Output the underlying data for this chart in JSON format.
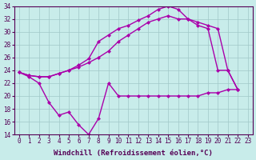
{
  "xlabel": "Windchill (Refroidissement éolien,°C)",
  "bg_color": "#c8ecea",
  "grid_color": "#a0c8c8",
  "line_color": "#aa00aa",
  "xlim": [
    -0.5,
    23.5
  ],
  "ylim": [
    14,
    34
  ],
  "yticks": [
    14,
    16,
    18,
    20,
    22,
    24,
    26,
    28,
    30,
    32,
    34
  ],
  "xticks": [
    0,
    1,
    2,
    3,
    4,
    5,
    6,
    7,
    8,
    9,
    10,
    11,
    12,
    13,
    14,
    15,
    16,
    17,
    18,
    19,
    20,
    21,
    22,
    23
  ],
  "line1_x": [
    0,
    1,
    2,
    3,
    4,
    5,
    6,
    7,
    8,
    9,
    10,
    11,
    12,
    13,
    14,
    15,
    16,
    17,
    18,
    19,
    20,
    21,
    22
  ],
  "line1_y": [
    23.7,
    23.0,
    22.0,
    19.0,
    17.0,
    17.5,
    15.5,
    14.0,
    16.5,
    22.0,
    20.0,
    20.0,
    20.0,
    20.0,
    20.0,
    20.0,
    20.0,
    20.0,
    20.0,
    20.5,
    20.5,
    21.0,
    21.0
  ],
  "line2_x": [
    0,
    1,
    2,
    3,
    4,
    5,
    6,
    7,
    8,
    9,
    10,
    11,
    12,
    13,
    14,
    15,
    16,
    17,
    18,
    19,
    20,
    21,
    22
  ],
  "line2_y": [
    23.7,
    23.2,
    23.0,
    23.0,
    23.5,
    24.0,
    24.8,
    25.8,
    28.5,
    29.5,
    30.5,
    31.0,
    31.8,
    32.5,
    33.5,
    34.0,
    33.5,
    32.0,
    31.0,
    30.5,
    24.0,
    24.0,
    21.0
  ],
  "line3_x": [
    0,
    1,
    2,
    3,
    4,
    5,
    6,
    7,
    8,
    9,
    10,
    11,
    12,
    13,
    14,
    15,
    16,
    17,
    18,
    19,
    20,
    21,
    22
  ],
  "line3_y": [
    23.7,
    23.2,
    23.0,
    23.0,
    23.5,
    24.0,
    24.5,
    25.2,
    26.0,
    27.0,
    28.5,
    29.5,
    30.5,
    31.5,
    32.0,
    32.5,
    32.0,
    32.0,
    31.5,
    31.0,
    30.5,
    24.0,
    21.0
  ],
  "marker": "D",
  "markersize": 2.5,
  "linewidth": 1.0,
  "xlabel_fontsize": 6.5,
  "tick_fontsize": 5.5,
  "font_family": "monospace"
}
